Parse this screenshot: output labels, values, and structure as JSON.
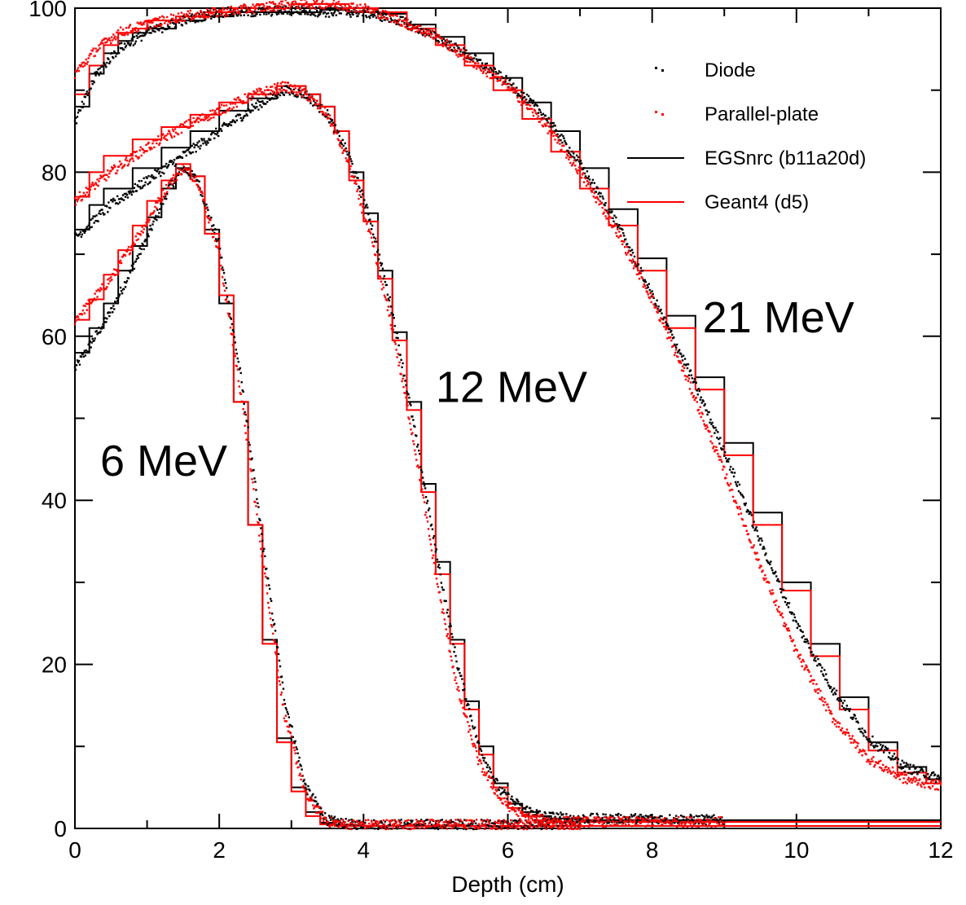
{
  "chart_data": {
    "type": "line",
    "xlabel": "Depth (cm)",
    "ylabel": "",
    "xlim": [
      0,
      12
    ],
    "ylim": [
      0,
      100
    ],
    "x_ticks": [
      "0",
      "2",
      "4",
      "6",
      "8",
      "10",
      "12"
    ],
    "y_ticks": [
      "0",
      "20",
      "40",
      "60",
      "80",
      "100"
    ],
    "grid": false,
    "legend_position": "top-right",
    "legend": [
      {
        "label": "Diode",
        "style": "dots",
        "color": "#000000"
      },
      {
        "label": "Parallel-plate",
        "style": "dots",
        "color": "#ff0000"
      },
      {
        "label": "EGSnrc (b11a20d)",
        "style": "line",
        "color": "#000000"
      },
      {
        "label": "Geant4 (d5)",
        "style": "line",
        "color": "#ff0000"
      }
    ],
    "annotations": [
      {
        "text": "6 MeV",
        "x": 0.35,
        "y": 43
      },
      {
        "text": "12 MeV",
        "x": 5.0,
        "y": 52
      },
      {
        "text": "21 MeV",
        "x": 8.7,
        "y": 60.5
      }
    ],
    "curves": [
      {
        "energy": "6 MeV",
        "diode": {
          "x": [
            0,
            0.5,
            1.0,
            1.3,
            1.5,
            1.7,
            2.0,
            2.3,
            2.6,
            2.9,
            3.2,
            3.5,
            3.8,
            5.0,
            7.0
          ],
          "y": [
            56,
            63,
            72,
            78,
            80.5,
            79,
            71,
            55,
            35,
            16,
            5,
            1,
            0.5,
            0.5,
            0.5
          ]
        },
        "parallel_plate": {
          "x": [
            0,
            0.5,
            1.0,
            1.3,
            1.5,
            1.7,
            2.0,
            2.3,
            2.6,
            2.9,
            3.2,
            3.5,
            3.8,
            5.0,
            7.0
          ],
          "y": [
            62,
            67,
            74,
            78.5,
            80.5,
            79,
            70,
            53,
            33,
            14,
            4,
            0.8,
            0.5,
            0.5,
            0.5
          ]
        },
        "egsnrc": {
          "x": [
            0,
            0.2,
            0.4,
            0.6,
            0.8,
            1.0,
            1.2,
            1.4,
            1.6,
            1.8,
            2.0,
            2.2,
            2.4,
            2.6,
            2.8,
            3.0,
            3.2,
            3.4,
            3.6,
            4.0,
            12.0
          ],
          "y": [
            58,
            61,
            64,
            68,
            71,
            74.5,
            78,
            80.5,
            79.5,
            73,
            64,
            52,
            37,
            23,
            11,
            5,
            2,
            0.7,
            0.4,
            0.3,
            0.3
          ]
        },
        "geant4": {
          "x": [
            0,
            0.2,
            0.4,
            0.6,
            0.8,
            1.0,
            1.2,
            1.4,
            1.6,
            1.8,
            2.0,
            2.2,
            2.4,
            2.6,
            2.8,
            3.0,
            3.2,
            3.4,
            3.6,
            4.0,
            12.0
          ],
          "y": [
            62,
            64.5,
            67.5,
            70.5,
            73.5,
            76.5,
            79,
            81,
            79.5,
            72.5,
            65,
            52,
            37,
            22.5,
            10.5,
            4.5,
            1.5,
            0.5,
            0.3,
            0.3,
            0.3
          ]
        }
      },
      {
        "energy": "12 MeV",
        "diode": {
          "x": [
            0,
            0.5,
            1.0,
            1.5,
            2.0,
            2.5,
            2.9,
            3.2,
            3.5,
            3.8,
            4.1,
            4.4,
            4.7,
            5.0,
            5.3,
            5.6,
            5.9,
            6.2,
            6.5,
            7.0,
            8.0,
            9.0
          ],
          "y": [
            72,
            76,
            79,
            82,
            85,
            88,
            90,
            89.5,
            87,
            82,
            74,
            63,
            49,
            34,
            20,
            10,
            4.5,
            2.5,
            1.5,
            1.2,
            1.2,
            1.0
          ]
        },
        "parallel_plate": {
          "x": [
            0,
            0.5,
            1.0,
            1.5,
            2.0,
            2.5,
            2.9,
            3.2,
            3.5,
            3.8,
            4.1,
            4.4,
            4.7,
            5.0,
            5.3,
            5.6,
            5.9,
            6.2,
            6.5,
            7.0,
            8.0,
            9.0
          ],
          "y": [
            76.5,
            80,
            83,
            85.5,
            87.5,
            89.5,
            90.5,
            89.5,
            87,
            81,
            72,
            61,
            47,
            31,
            17,
            8,
            3.5,
            1.5,
            1.0,
            0.8,
            0.8,
            0.8
          ]
        },
        "egsnrc": {
          "x": [
            0,
            0.2,
            0.4,
            0.8,
            1.2,
            1.6,
            2.0,
            2.4,
            2.8,
            3.2,
            3.4,
            3.6,
            3.8,
            4.0,
            4.2,
            4.4,
            4.6,
            4.8,
            5.0,
            5.2,
            5.4,
            5.6,
            5.8,
            6.0,
            6.2,
            6.4,
            6.6,
            7.0,
            12.0
          ],
          "y": [
            73,
            76,
            78,
            80.5,
            83,
            85,
            87.5,
            89,
            90.5,
            89.5,
            88,
            85,
            80,
            75,
            68,
            60.5,
            52,
            42,
            32.5,
            23,
            15.5,
            10,
            5.5,
            3,
            2,
            1.5,
            1.2,
            1.0,
            1.0
          ]
        },
        "geant4": {
          "x": [
            0,
            0.2,
            0.4,
            0.8,
            1.2,
            1.6,
            2.0,
            2.4,
            2.8,
            3.2,
            3.4,
            3.6,
            3.8,
            4.0,
            4.2,
            4.4,
            4.6,
            4.8,
            5.0,
            5.2,
            5.4,
            5.6,
            5.8,
            6.0,
            6.2,
            6.4,
            6.6,
            7.0,
            12.0
          ],
          "y": [
            77,
            80,
            82,
            84,
            85.5,
            87,
            88.5,
            89.5,
            90.5,
            89.5,
            88,
            85,
            79,
            74,
            67,
            59.5,
            51,
            41,
            31,
            22.5,
            14.5,
            9,
            5,
            2.5,
            1.5,
            1.0,
            0.8,
            0.8,
            0.8
          ]
        }
      },
      {
        "energy": "21 MeV",
        "diode": {
          "x": [
            0,
            0.3,
            0.6,
            1.0,
            1.5,
            2.0,
            2.5,
            3.0,
            3.5,
            4.0,
            4.5,
            5.0,
            5.5,
            6.0,
            6.5,
            7.0,
            7.5,
            8.0,
            8.5,
            9.0,
            9.5,
            10.0,
            10.5,
            11.0,
            11.5,
            12.0
          ],
          "y": [
            86,
            92,
            95,
            97,
            98.5,
            99.5,
            99.5,
            99.8,
            99.5,
            99.5,
            98.5,
            96.5,
            94,
            91,
            87,
            81,
            74,
            65,
            56,
            46,
            35,
            25,
            17,
            11,
            7.5,
            6
          ]
        },
        "parallel_plate": {
          "x": [
            0,
            0.3,
            0.6,
            1.0,
            1.5,
            2.0,
            2.5,
            3.0,
            3.5,
            4.0,
            4.5,
            5.0,
            5.5,
            6.0,
            6.5,
            7.0,
            7.5,
            8.0,
            8.5,
            9.0,
            9.5,
            10.0,
            10.5,
            11.0,
            11.5,
            12.0
          ],
          "y": [
            92,
            95,
            97,
            98,
            99,
            99.5,
            100,
            100.5,
            100.5,
            100,
            98.5,
            96.5,
            93.5,
            90.5,
            86,
            80,
            73,
            64.5,
            54.5,
            43.5,
            32,
            21.5,
            13.5,
            8.5,
            6,
            5.2
          ]
        },
        "egsnrc": {
          "x": [
            0,
            0.2,
            0.4,
            0.6,
            0.8,
            1.0,
            1.4,
            1.8,
            2.2,
            2.6,
            3.0,
            3.4,
            3.8,
            4.2,
            4.6,
            5.0,
            5.4,
            5.8,
            6.2,
            6.6,
            7.0,
            7.4,
            7.8,
            8.2,
            8.6,
            9.0,
            9.4,
            9.8,
            10.2,
            10.6,
            11.0,
            11.4,
            11.8,
            12.0
          ],
          "y": [
            88,
            92,
            94.5,
            96,
            97,
            97.5,
            98.5,
            99,
            99.5,
            99.5,
            99.5,
            99.8,
            99.5,
            99.3,
            98,
            96.5,
            94.5,
            91.5,
            88.5,
            85,
            80.5,
            75.5,
            69.5,
            62.5,
            55,
            47,
            38.5,
            30,
            22.5,
            16,
            10.5,
            7.5,
            6,
            5.5
          ]
        },
        "geant4": {
          "x": [
            0,
            0.2,
            0.4,
            0.6,
            0.8,
            1.0,
            1.4,
            1.8,
            2.2,
            2.6,
            3.0,
            3.4,
            3.8,
            4.2,
            4.6,
            5.0,
            5.4,
            5.8,
            6.2,
            6.6,
            7.0,
            7.4,
            7.8,
            8.2,
            8.6,
            9.0,
            9.4,
            9.8,
            10.2,
            10.6,
            11.0,
            11.4,
            11.8,
            12.0
          ],
          "y": [
            89.5,
            93,
            95.5,
            97,
            97.5,
            98.5,
            99,
            99.5,
            100,
            100,
            100.5,
            100.5,
            100,
            99.5,
            97.5,
            95.5,
            93,
            90,
            86.5,
            82.5,
            78,
            73.5,
            68,
            61,
            53.5,
            45.5,
            37,
            29,
            21,
            14.5,
            9.5,
            6.8,
            5.5,
            5.2
          ]
        }
      }
    ]
  }
}
